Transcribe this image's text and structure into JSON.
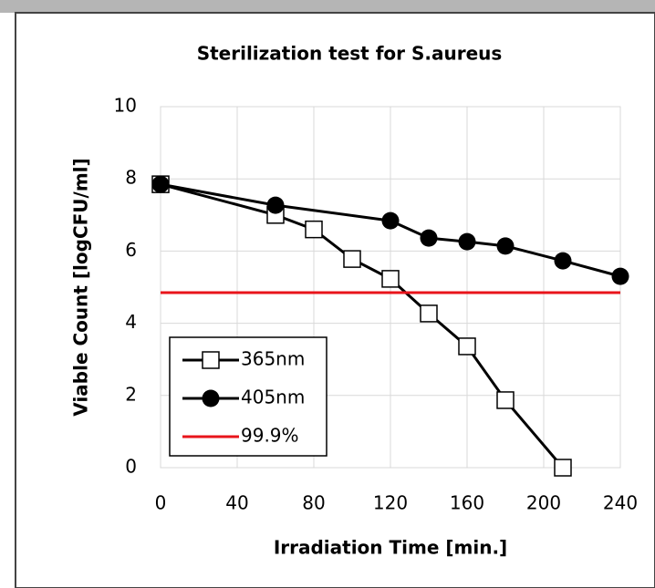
{
  "chart_data": {
    "type": "line",
    "title": "Sterilization test for S.aureus",
    "x_label": "Irradiation Time [min.]",
    "y_label": "Viable Count [logCFU/ml]",
    "xlim": [
      0,
      240
    ],
    "xticks": [
      0,
      40,
      80,
      120,
      160,
      200,
      240
    ],
    "ylim": [
      0,
      10
    ],
    "yticks": [
      0,
      2,
      4,
      6,
      8,
      10
    ],
    "grid": true,
    "legend": "lower left",
    "series": [
      {
        "name": "365nm",
        "color": "#000000",
        "marker": "square",
        "x": [
          0,
          60,
          80,
          100,
          120,
          140,
          160,
          180,
          210
        ],
        "values": [
          7.85,
          7.0,
          6.6,
          5.78,
          5.23,
          4.27,
          3.36,
          1.87,
          0
        ]
      },
      {
        "name": "405nm",
        "color": "#000000",
        "marker": "circle",
        "x": [
          0,
          60,
          120,
          140,
          160,
          180,
          210,
          240
        ],
        "values": [
          7.85,
          7.27,
          6.84,
          6.36,
          6.26,
          6.14,
          5.73,
          5.3
        ]
      },
      {
        "name": "99.9%",
        "color": "#e8141b",
        "x": [
          0,
          240
        ],
        "values": [
          4.85,
          4.85
        ]
      }
    ]
  }
}
